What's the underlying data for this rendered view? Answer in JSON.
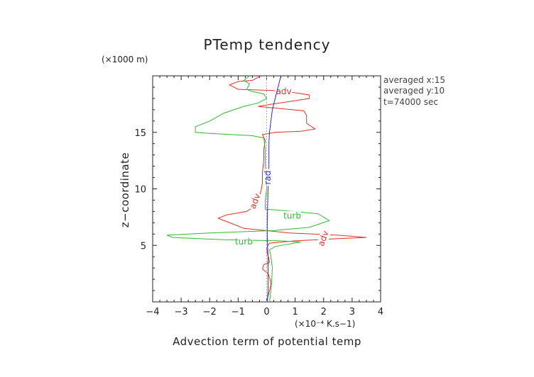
{
  "chart_data": {
    "type": "line",
    "title": "PTemp tendency",
    "xlabel": "Advection term of potential temp",
    "xunit": "(×10⁻⁴ K.s−1)",
    "ylabel": "z−coordinate",
    "yunit": "(×1000 m)",
    "xlim": [
      -4,
      4
    ],
    "ylim": [
      0,
      20
    ],
    "xticks": [
      "−4",
      "−3",
      "−2",
      "−1",
      "0",
      "1",
      "2",
      "3",
      "4"
    ],
    "xtick_values": [
      -4,
      -3,
      -2,
      -1,
      0,
      1,
      2,
      3,
      4
    ],
    "yticks": [
      "5",
      "10",
      "15"
    ],
    "ytick_values": [
      5,
      10,
      15
    ],
    "annotations": [
      "averaged  x:15",
      "averaged  y:10",
      "t=74000 sec"
    ],
    "series": [
      {
        "name": "adv",
        "color": "#e0302a",
        "labels": [
          {
            "x": 0.6,
            "y": 18.6
          },
          {
            "x": -0.4,
            "y": 8.9
          },
          {
            "x": 2.0,
            "y": 5.6
          }
        ],
        "points": [
          [
            0,
            0
          ],
          [
            0.05,
            0.5
          ],
          [
            0.1,
            1.0
          ],
          [
            0.15,
            1.5
          ],
          [
            0.12,
            2.0
          ],
          [
            0.05,
            2.5
          ],
          [
            -0.15,
            2.9
          ],
          [
            -0.1,
            3.3
          ],
          [
            0.1,
            3.5
          ],
          [
            0.08,
            3.8
          ],
          [
            0.02,
            4.3
          ],
          [
            0,
            4.8
          ],
          [
            0.1,
            5.2
          ],
          [
            1.0,
            5.4
          ],
          [
            2.5,
            5.6
          ],
          [
            3.5,
            5.7
          ],
          [
            2.5,
            5.9
          ],
          [
            0.8,
            6.1
          ],
          [
            -0.8,
            6.5
          ],
          [
            -1.2,
            6.9
          ],
          [
            -1.7,
            7.4
          ],
          [
            -1.4,
            7.7
          ],
          [
            -0.7,
            8.0
          ],
          [
            -0.4,
            8.5
          ],
          [
            -0.3,
            9.0
          ],
          [
            -0.2,
            9.8
          ],
          [
            -0.15,
            10.5
          ],
          [
            -0.15,
            11.5
          ],
          [
            -0.1,
            12.5
          ],
          [
            -0.1,
            13.5
          ],
          [
            -0.05,
            14.3
          ],
          [
            -0.15,
            14.8
          ],
          [
            0.3,
            15.0
          ],
          [
            1.2,
            15.1
          ],
          [
            1.7,
            15.3
          ],
          [
            1.4,
            15.8
          ],
          [
            1.4,
            16.5
          ],
          [
            1.3,
            16.9
          ],
          [
            0.5,
            17.1
          ],
          [
            -0.3,
            17.3
          ],
          [
            0.2,
            17.5
          ],
          [
            1.0,
            17.8
          ],
          [
            1.5,
            18.0
          ],
          [
            1.5,
            18.3
          ],
          [
            1.0,
            18.5
          ],
          [
            0.2,
            18.7
          ],
          [
            -1.0,
            18.8
          ],
          [
            -1.3,
            19.2
          ],
          [
            -1.0,
            19.5
          ],
          [
            -0.5,
            19.6
          ],
          [
            -0.2,
            20.0
          ]
        ]
      },
      {
        "name": "turb",
        "color": "#33b833",
        "labels": [
          {
            "x": 0.9,
            "y": 7.6
          },
          {
            "x": -0.8,
            "y": 5.3
          }
        ],
        "points": [
          [
            0.1,
            0
          ],
          [
            0.15,
            1.0
          ],
          [
            0.18,
            2.0
          ],
          [
            0.2,
            3.0
          ],
          [
            0.15,
            4.0
          ],
          [
            0.1,
            4.6
          ],
          [
            0.3,
            4.9
          ],
          [
            1.2,
            5.3
          ],
          [
            0.5,
            5.4
          ],
          [
            -1.5,
            5.5
          ],
          [
            -3.3,
            5.7
          ],
          [
            -3.5,
            5.9
          ],
          [
            -2.0,
            6.1
          ],
          [
            0.2,
            6.3
          ],
          [
            1.5,
            6.6
          ],
          [
            2.2,
            7.2
          ],
          [
            1.8,
            7.8
          ],
          [
            0.5,
            8.1
          ],
          [
            -0.05,
            8.2
          ],
          [
            -0.05,
            9.0
          ],
          [
            0,
            10.0
          ],
          [
            0,
            11.0
          ],
          [
            -0.05,
            12.0
          ],
          [
            -0.05,
            13.5
          ],
          [
            -0.1,
            14.5
          ],
          [
            -0.5,
            14.7
          ],
          [
            -2.0,
            14.9
          ],
          [
            -2.5,
            15.0
          ],
          [
            -2.5,
            15.5
          ],
          [
            -2.0,
            16.0
          ],
          [
            -1.5,
            16.7
          ],
          [
            -0.8,
            17.3
          ],
          [
            -0.3,
            17.6
          ],
          [
            0,
            18.0
          ],
          [
            -0.1,
            18.4
          ],
          [
            -0.5,
            18.6
          ],
          [
            -0.7,
            18.8
          ],
          [
            -0.6,
            19.3
          ],
          [
            -0.8,
            19.6
          ],
          [
            -0.6,
            20.0
          ]
        ]
      },
      {
        "name": "rad",
        "color": "#2b2bd6",
        "labels": [
          {
            "x": 0.05,
            "y": 11.0
          }
        ],
        "points": [
          [
            0.02,
            0
          ],
          [
            0.05,
            1.0
          ],
          [
            0.05,
            2.0
          ],
          [
            0.05,
            3.0
          ],
          [
            0.05,
            4.0
          ],
          [
            0.03,
            5.0
          ],
          [
            0.02,
            6.0
          ],
          [
            0.02,
            7.0
          ],
          [
            0.03,
            8.0
          ],
          [
            0.04,
            9.0
          ],
          [
            0.05,
            10.0
          ],
          [
            0.06,
            11.0
          ],
          [
            0.08,
            12.0
          ],
          [
            0.08,
            13.0
          ],
          [
            0.08,
            14.0
          ],
          [
            0.1,
            15.0
          ],
          [
            0.15,
            16.0
          ],
          [
            0.2,
            17.0
          ],
          [
            0.3,
            18.0
          ],
          [
            0.4,
            19.0
          ],
          [
            0.5,
            20.0
          ]
        ]
      },
      {
        "name": "",
        "color": "#f0a020",
        "labels": [],
        "points": [
          [
            0.0,
            0
          ],
          [
            0.0,
            4.0
          ],
          [
            0.0,
            8.0
          ],
          [
            0.0,
            12.0
          ],
          [
            0.0,
            15.0
          ],
          [
            0.0,
            18.0
          ],
          [
            0.0,
            20.0
          ]
        ]
      }
    ]
  }
}
